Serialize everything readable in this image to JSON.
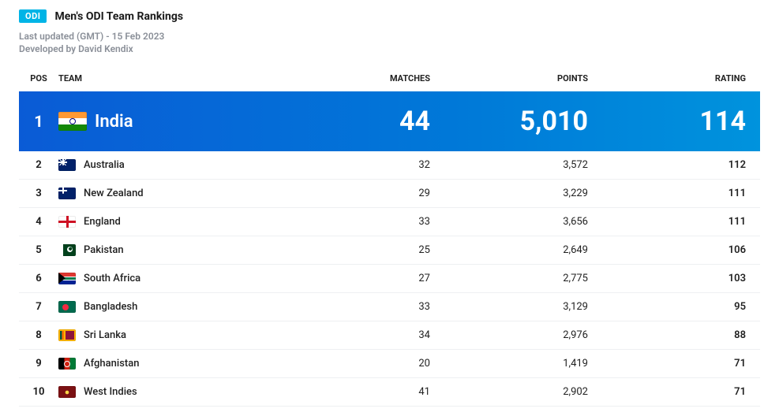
{
  "header": {
    "badge": "ODI",
    "title": "Men's ODI Team Rankings",
    "last_updated": "Last updated (GMT) - 15 Feb 2023",
    "developed_by": "Developed by David Kendix"
  },
  "columns": {
    "pos": "POS",
    "team": "TEAM",
    "matches": "MATCHES",
    "points": "POINTS",
    "rating": "RATING"
  },
  "rows": [
    {
      "pos": "1",
      "team": "India",
      "flag": "in",
      "matches": "44",
      "points": "5,010",
      "rating": "114",
      "featured": true
    },
    {
      "pos": "2",
      "team": "Australia",
      "flag": "au",
      "matches": "32",
      "points": "3,572",
      "rating": "112"
    },
    {
      "pos": "3",
      "team": "New Zealand",
      "flag": "nz",
      "matches": "29",
      "points": "3,229",
      "rating": "111"
    },
    {
      "pos": "4",
      "team": "England",
      "flag": "en",
      "matches": "33",
      "points": "3,656",
      "rating": "111"
    },
    {
      "pos": "5",
      "team": "Pakistan",
      "flag": "pk",
      "matches": "25",
      "points": "2,649",
      "rating": "106"
    },
    {
      "pos": "6",
      "team": "South Africa",
      "flag": "za",
      "matches": "27",
      "points": "2,775",
      "rating": "103"
    },
    {
      "pos": "7",
      "team": "Bangladesh",
      "flag": "bd",
      "matches": "33",
      "points": "3,129",
      "rating": "95"
    },
    {
      "pos": "8",
      "team": "Sri Lanka",
      "flag": "lk",
      "matches": "34",
      "points": "2,976",
      "rating": "88"
    },
    {
      "pos": "9",
      "team": "Afghanistan",
      "flag": "af",
      "matches": "20",
      "points": "1,419",
      "rating": "71"
    },
    {
      "pos": "10",
      "team": "West Indies",
      "flag": "wi",
      "matches": "41",
      "points": "2,902",
      "rating": "71"
    }
  ],
  "colors": {
    "badge_bg": "#00b4e6",
    "featured_gradient_start": "#0a5bd6",
    "featured_gradient_end": "#0093dd",
    "meta_text": "#8a8f98",
    "row_border": "#eef0f2"
  }
}
